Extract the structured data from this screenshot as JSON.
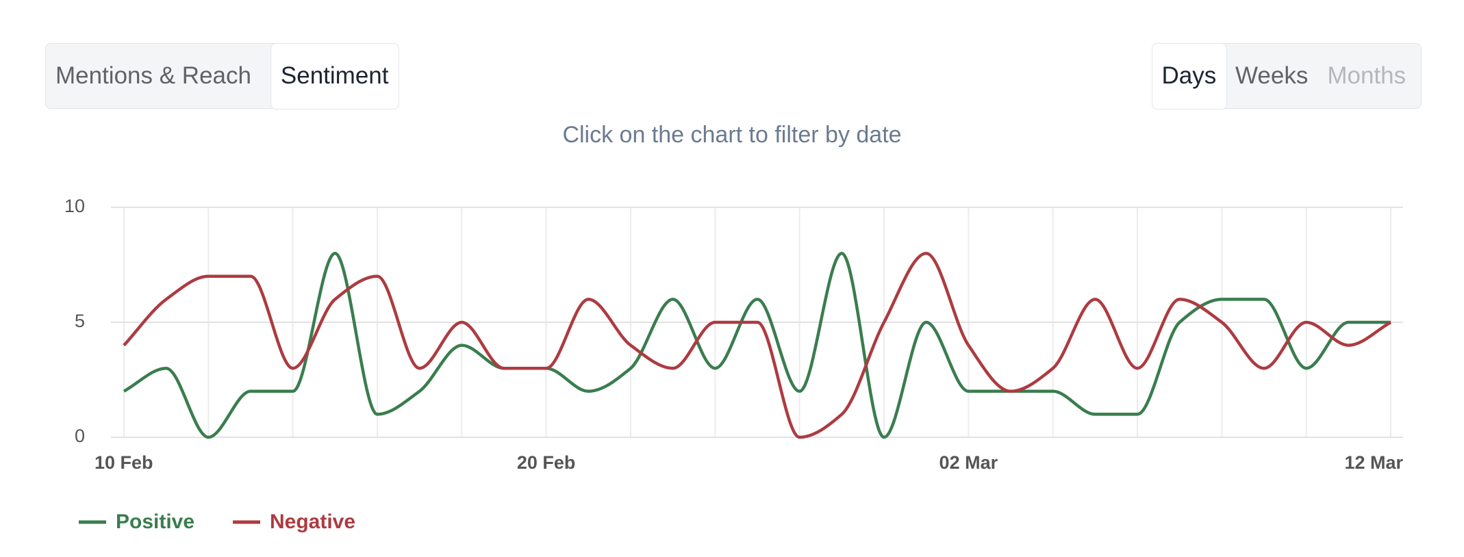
{
  "tabs": [
    "Mentions & Reach",
    "Sentiment"
  ],
  "periods": [
    "Days",
    "Weeks",
    "Months"
  ],
  "hint": "Click on the chart to filter by date",
  "chart_data": {
    "type": "line",
    "categories": [
      "10 Feb",
      null,
      null,
      null,
      null,
      null,
      null,
      null,
      null,
      null,
      "20 Feb",
      null,
      null,
      null,
      null,
      null,
      null,
      null,
      null,
      null,
      "02 Mar",
      null,
      null,
      null,
      null,
      null,
      null,
      null,
      null,
      null,
      "12 Mar"
    ],
    "series": [
      {
        "name": "Positive",
        "color": "#3a7d4e",
        "values": [
          2,
          3,
          0,
          2,
          2,
          8,
          1,
          2,
          4,
          3,
          3,
          2,
          3,
          6,
          3,
          6,
          2,
          8,
          0,
          5,
          2,
          2,
          2,
          1,
          1,
          5,
          6,
          6,
          3,
          5,
          5
        ]
      },
      {
        "name": "Negative",
        "color": "#ad3b40",
        "values": [
          4,
          6,
          7,
          7,
          3,
          6,
          7,
          3,
          5,
          3,
          3,
          6,
          4,
          3,
          5,
          5,
          0,
          1,
          5,
          8,
          4,
          2,
          3,
          6,
          3,
          6,
          5,
          3,
          5,
          4,
          5
        ]
      }
    ],
    "ylim": [
      0,
      10
    ],
    "yticks": [
      0,
      5,
      10
    ],
    "grid": true
  }
}
